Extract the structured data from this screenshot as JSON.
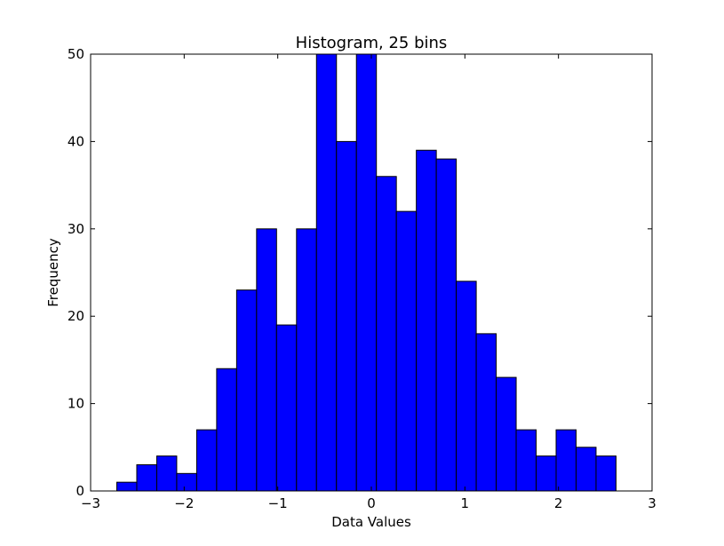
{
  "chart_data": {
    "type": "bar",
    "title": "Histogram, 25 bins",
    "xlabel": "Data Values",
    "ylabel": "Frequency",
    "xlim": [
      -3,
      3
    ],
    "ylim": [
      0,
      50
    ],
    "x_ticks": [
      -3,
      -2,
      -1,
      0,
      1,
      2,
      3
    ],
    "x_tick_labels": [
      "−3",
      "−2",
      "−1",
      "0",
      "1",
      "2",
      "3"
    ],
    "y_ticks": [
      0,
      10,
      20,
      30,
      40,
      50
    ],
    "y_tick_labels": [
      "0",
      "10",
      "20",
      "30",
      "40",
      "50"
    ],
    "bin_start": -2.72,
    "bin_width": 0.2134,
    "values": [
      1,
      3,
      4,
      2,
      7,
      14,
      23,
      30,
      19,
      30,
      50,
      40,
      50,
      36,
      32,
      39,
      38,
      24,
      18,
      13,
      7,
      4,
      7,
      5,
      4
    ],
    "bar_color": "#0000ff",
    "edge_color": "#000000",
    "grid": false
  }
}
